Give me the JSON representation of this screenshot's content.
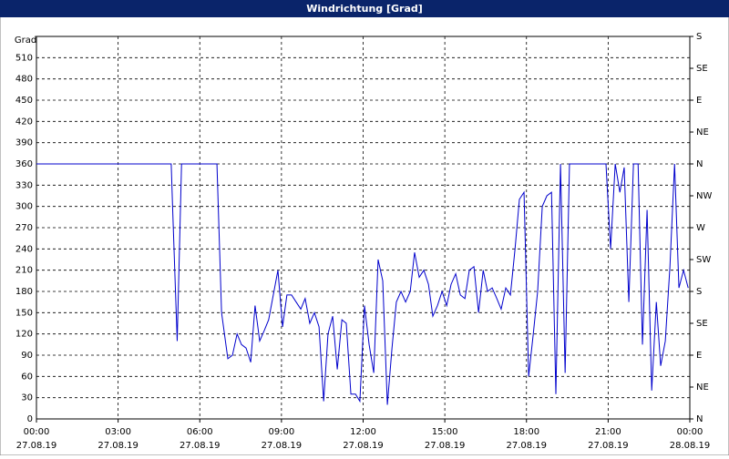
{
  "chart_data": {
    "type": "line",
    "title": "Windrichtung [Grad]",
    "y_label": "Grad",
    "xlim": [
      0,
      24
    ],
    "xticks": [
      {
        "value": 0,
        "label": "00:00"
      },
      {
        "value": 3,
        "label": "03:00"
      },
      {
        "value": 6,
        "label": "06:00"
      },
      {
        "value": 9,
        "label": "09:00"
      },
      {
        "value": 12,
        "label": "12:00"
      },
      {
        "value": 15,
        "label": "15:00"
      },
      {
        "value": 18,
        "label": "18:00"
      },
      {
        "value": 21,
        "label": "21:00"
      },
      {
        "value": 24,
        "label": "00:00"
      }
    ],
    "xtick_dates": [
      "27.08.19",
      "27.08.19",
      "27.08.19",
      "27.08.19",
      "27.08.19",
      "27.08.19",
      "27.08.19",
      "27.08.19",
      "28.08.19"
    ],
    "ylim": [
      0,
      540
    ],
    "yticks": [
      0,
      30,
      60,
      90,
      120,
      150,
      180,
      210,
      240,
      270,
      300,
      330,
      360,
      390,
      420,
      450,
      480,
      510
    ],
    "y2lim": [
      0,
      540
    ],
    "y2ticks": [
      {
        "value": 0,
        "label": "N"
      },
      {
        "value": 45,
        "label": "NE"
      },
      {
        "value": 90,
        "label": "E"
      },
      {
        "value": 135,
        "label": "SE"
      },
      {
        "value": 180,
        "label": "S"
      },
      {
        "value": 225,
        "label": "SW"
      },
      {
        "value": 270,
        "label": "W"
      },
      {
        "value": 315,
        "label": "NW"
      },
      {
        "value": 360,
        "label": "N"
      },
      {
        "value": 405,
        "label": "NE"
      },
      {
        "value": 450,
        "label": "E"
      },
      {
        "value": 495,
        "label": "SE"
      },
      {
        "value": 540,
        "label": "S"
      }
    ],
    "grid": true,
    "color": "#0000cc",
    "x": [
      0,
      4.95,
      5.0,
      5.17,
      5.33,
      6.63,
      6.8,
      7.03,
      7.2,
      7.37,
      7.53,
      7.7,
      7.87,
      8.03,
      8.2,
      8.37,
      8.53,
      8.7,
      8.87,
      9.04,
      9.2,
      9.37,
      9.54,
      9.71,
      9.87,
      10.04,
      10.21,
      10.38,
      10.55,
      10.71,
      10.88,
      11.05,
      11.22,
      11.38,
      11.55,
      11.72,
      11.88,
      12.05,
      12.22,
      12.39,
      12.55,
      12.72,
      12.89,
      13.06,
      13.22,
      13.39,
      13.56,
      13.73,
      13.89,
      14.06,
      14.23,
      14.4,
      14.56,
      14.73,
      14.9,
      15.07,
      15.23,
      15.4,
      15.57,
      15.74,
      15.9,
      16.07,
      16.24,
      16.41,
      16.57,
      16.74,
      16.91,
      17.07,
      17.24,
      17.41,
      17.58,
      17.74,
      17.91,
      18.08,
      18.25,
      18.41,
      18.58,
      18.75,
      18.92,
      19.08,
      19.25,
      19.42,
      19.58,
      20.92,
      21.09,
      21.26,
      21.43,
      21.59,
      21.76,
      21.93,
      22.1,
      22.26,
      22.43,
      22.6,
      22.77,
      22.93,
      23.1,
      23.27,
      23.44,
      23.6,
      23.77,
      23.94
    ],
    "values": [
      360,
      360,
      300,
      110,
      360,
      360,
      150,
      85,
      90,
      120,
      105,
      100,
      80,
      160,
      110,
      125,
      140,
      175,
      210,
      130,
      175,
      175,
      165,
      155,
      170,
      135,
      150,
      130,
      25,
      120,
      145,
      70,
      140,
      135,
      35,
      35,
      25,
      160,
      105,
      65,
      225,
      195,
      20,
      100,
      165,
      180,
      165,
      180,
      235,
      200,
      210,
      190,
      145,
      160,
      180,
      160,
      190,
      205,
      175,
      170,
      210,
      215,
      150,
      210,
      180,
      185,
      170,
      155,
      185,
      175,
      240,
      310,
      320,
      60,
      120,
      180,
      300,
      315,
      320,
      35,
      360,
      65,
      360,
      360,
      240,
      360,
      320,
      355,
      165,
      360,
      360,
      105,
      295,
      40,
      165,
      75,
      110,
      215,
      360,
      185,
      210,
      185
    ]
  }
}
